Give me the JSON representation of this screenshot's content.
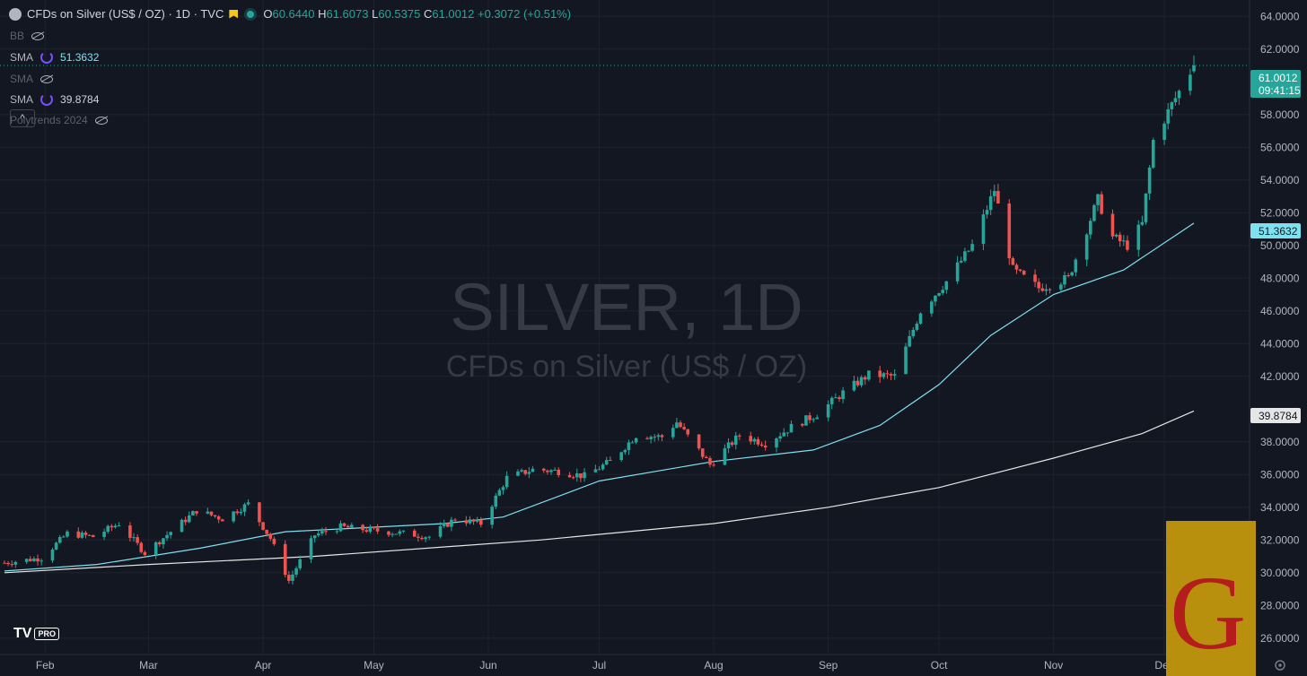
{
  "header": {
    "title": "CFDs on Silver (US$ / OZ) · 1D · TVC",
    "open": "60.6440",
    "high": "61.6073",
    "low": "60.5375",
    "close": "61.0012",
    "change": "+0.3072 (+0.51%)",
    "o_label": "O",
    "h_label": "H",
    "l_label": "L",
    "c_label": "C"
  },
  "indicators": [
    {
      "name": "BB",
      "value": "",
      "visible": false
    },
    {
      "name": "SMA",
      "value": "51.3632",
      "visible": true,
      "color": "#7ee1f0"
    },
    {
      "name": "SMA",
      "value": "",
      "visible": false
    },
    {
      "name": "SMA",
      "value": "39.8784",
      "visible": true,
      "color": "#e6e6e6"
    },
    {
      "name": "Polytrends 2024",
      "value": "",
      "visible": false
    }
  ],
  "collapse_glyph": "^",
  "watermark": {
    "symbol": "SILVER, 1D",
    "description": "CFDs on Silver (US$ / OZ)"
  },
  "price_labels": {
    "last": "61.0012",
    "countdown": "09:41:15",
    "sma50": "51.3632",
    "sma200": "39.8784"
  },
  "tv_logo": {
    "brand": "TV",
    "badge": "PRO"
  },
  "publisher_mark": "G",
  "colors": {
    "up": "#26a69a",
    "down": "#ef5350",
    "background": "#131722",
    "sma_fast": "#7ee1f0",
    "sma_slow": "#e6e6e6",
    "last_label": "#26a69a"
  },
  "chart_data": {
    "type": "candlestick",
    "ylim": [
      25,
      65
    ],
    "yticks": [
      "64.0000",
      "62.0000",
      "58.0000",
      "56.0000",
      "54.0000",
      "52.0000",
      "50.0000",
      "48.0000",
      "46.0000",
      "44.0000",
      "42.0000",
      "38.0000",
      "36.0000",
      "34.0000",
      "32.0000",
      "30.0000",
      "28.0000",
      "26.0000"
    ],
    "xticks": [
      "Feb",
      "Mar",
      "Apr",
      "May",
      "Jun",
      "Jul",
      "Aug",
      "Sep",
      "Oct",
      "Nov",
      "Dec"
    ],
    "close_path": [
      {
        "date": "2025-01-21",
        "close": 30.6
      },
      {
        "date": "2025-01-31",
        "close": 30.9
      },
      {
        "date": "2025-02-07",
        "close": 32.4
      },
      {
        "date": "2025-02-14",
        "close": 32.2
      },
      {
        "date": "2025-02-21",
        "close": 33.0
      },
      {
        "date": "2025-02-28",
        "close": 31.2
      },
      {
        "date": "2025-03-07",
        "close": 32.5
      },
      {
        "date": "2025-03-14",
        "close": 33.8
      },
      {
        "date": "2025-03-21",
        "close": 33.3
      },
      {
        "date": "2025-03-28",
        "close": 34.2
      },
      {
        "date": "2025-04-03",
        "close": 32.1
      },
      {
        "date": "2025-04-08",
        "close": 29.5
      },
      {
        "date": "2025-04-15",
        "close": 32.3
      },
      {
        "date": "2025-04-22",
        "close": 32.8
      },
      {
        "date": "2025-04-30",
        "close": 32.6
      },
      {
        "date": "2025-05-09",
        "close": 32.4
      },
      {
        "date": "2025-05-16",
        "close": 32.2
      },
      {
        "date": "2025-05-23",
        "close": 33.3
      },
      {
        "date": "2025-05-30",
        "close": 33.0
      },
      {
        "date": "2025-06-06",
        "close": 35.8
      },
      {
        "date": "2025-06-13",
        "close": 36.3
      },
      {
        "date": "2025-06-20",
        "close": 36.2
      },
      {
        "date": "2025-06-27",
        "close": 35.9
      },
      {
        "date": "2025-07-04",
        "close": 36.8
      },
      {
        "date": "2025-07-11",
        "close": 38.4
      },
      {
        "date": "2025-07-18",
        "close": 38.3
      },
      {
        "date": "2025-07-22",
        "close": 39.2
      },
      {
        "date": "2025-07-31",
        "close": 36.6
      },
      {
        "date": "2025-08-08",
        "close": 38.4
      },
      {
        "date": "2025-08-15",
        "close": 37.9
      },
      {
        "date": "2025-08-22",
        "close": 38.9
      },
      {
        "date": "2025-08-29",
        "close": 39.7
      },
      {
        "date": "2025-09-05",
        "close": 41.0
      },
      {
        "date": "2025-09-12",
        "close": 42.1
      },
      {
        "date": "2025-09-19",
        "close": 42.0
      },
      {
        "date": "2025-09-26",
        "close": 46.0
      },
      {
        "date": "2025-10-03",
        "close": 47.8
      },
      {
        "date": "2025-10-10",
        "close": 50.0
      },
      {
        "date": "2025-10-16",
        "close": 53.4
      },
      {
        "date": "2025-10-21",
        "close": 48.5
      },
      {
        "date": "2025-10-28",
        "close": 47.4
      },
      {
        "date": "2025-11-05",
        "close": 48.0
      },
      {
        "date": "2025-11-13",
        "close": 52.8
      },
      {
        "date": "2025-11-17",
        "close": 50.5
      },
      {
        "date": "2025-11-21",
        "close": 50.0
      },
      {
        "date": "2025-11-25",
        "close": 51.3
      },
      {
        "date": "2025-11-28",
        "close": 56.4
      },
      {
        "date": "2025-12-03",
        "close": 58.6
      },
      {
        "date": "2025-12-09",
        "close": 61.0
      }
    ],
    "series": [
      {
        "name": "SMA",
        "date_range": [
          "2025-01-21",
          "2025-12-09"
        ],
        "points": [
          [
            30.1,
            "2025-01-21"
          ],
          [
            30.5,
            "2025-02-15"
          ],
          [
            31.5,
            "2025-03-15"
          ],
          [
            32.5,
            "2025-04-07"
          ],
          [
            33.0,
            "2025-05-20"
          ],
          [
            33.4,
            "2025-06-05"
          ],
          [
            35.6,
            "2025-07-01"
          ],
          [
            36.8,
            "2025-08-01"
          ],
          [
            37.5,
            "2025-08-28"
          ],
          [
            39.0,
            "2025-09-15"
          ],
          [
            41.5,
            "2025-10-01"
          ],
          [
            44.5,
            "2025-10-15"
          ],
          [
            47.0,
            "2025-11-01"
          ],
          [
            48.5,
            "2025-11-20"
          ],
          [
            51.36,
            "2025-12-09"
          ]
        ]
      },
      {
        "name": "SMA",
        "date_range": [
          "2025-01-21",
          "2025-12-09"
        ],
        "points": [
          [
            30.0,
            "2025-01-21"
          ],
          [
            30.5,
            "2025-03-01"
          ],
          [
            31.0,
            "2025-04-15"
          ],
          [
            32.0,
            "2025-06-15"
          ],
          [
            33.0,
            "2025-08-01"
          ],
          [
            34.0,
            "2025-09-01"
          ],
          [
            35.2,
            "2025-10-01"
          ],
          [
            37.0,
            "2025-11-01"
          ],
          [
            38.5,
            "2025-11-25"
          ],
          [
            39.88,
            "2025-12-09"
          ]
        ]
      }
    ]
  }
}
